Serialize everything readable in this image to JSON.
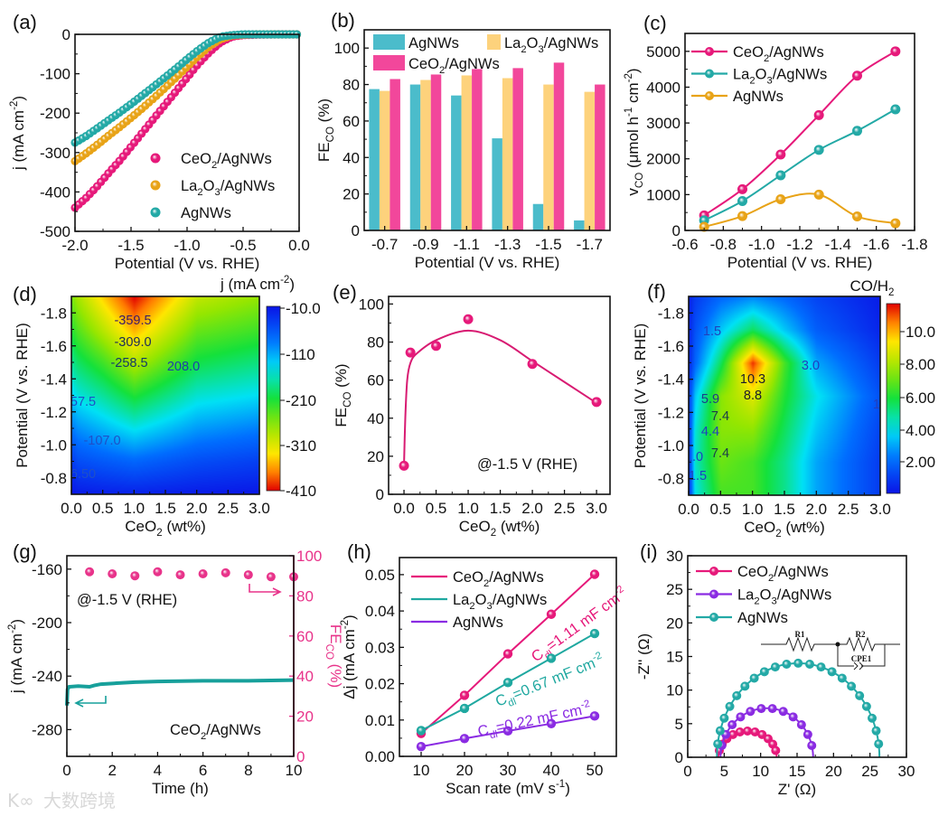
{
  "watermark": {
    "logo": "K∞",
    "text": "大数跨境"
  },
  "chart_data": [
    {
      "id": "a",
      "panel_label": "(a)",
      "type": "scatter",
      "xlabel": "Potential (V vs. RHE)",
      "ylabel": "j (mA cm^{-2})",
      "xlim": [
        -2.0,
        0.0
      ],
      "ylim": [
        -500,
        0
      ],
      "xticks": [
        "-2.0",
        "-1.5",
        "-1.0",
        "-0.5",
        "0.0"
      ],
      "yticks": [
        "0",
        "-100",
        "-200",
        "-300",
        "-400",
        "-500"
      ],
      "legend_position": "bottom-right",
      "series": [
        {
          "name": "CeO_{2}/AgNWs",
          "color": "#e6197a",
          "x": [
            -2.0,
            -1.9,
            -1.8,
            -1.7,
            -1.6,
            -1.5,
            -1.4,
            -1.3,
            -1.2,
            -1.1,
            -1.0,
            -0.9,
            -0.8,
            -0.7,
            -0.6,
            -0.5,
            -0.4,
            -0.2,
            0.0
          ],
          "y": [
            -440,
            -415,
            -385,
            -352,
            -320,
            -285,
            -250,
            -215,
            -180,
            -145,
            -110,
            -75,
            -45,
            -20,
            -6,
            -2,
            -1,
            0,
            0
          ]
        },
        {
          "name": "La_{2}O_{3}/AgNWs",
          "color": "#e8a317",
          "x": [
            -2.0,
            -1.9,
            -1.8,
            -1.7,
            -1.6,
            -1.5,
            -1.4,
            -1.3,
            -1.2,
            -1.1,
            -1.0,
            -0.9,
            -0.8,
            -0.7,
            -0.6,
            -0.5,
            -0.4,
            -0.2,
            0.0
          ],
          "y": [
            -322,
            -302,
            -280,
            -257,
            -235,
            -212,
            -188,
            -163,
            -137,
            -110,
            -82,
            -55,
            -30,
            -12,
            -3,
            -1,
            0,
            0,
            0
          ]
        },
        {
          "name": "AgNWs",
          "color": "#23a9a6",
          "x": [
            -2.0,
            -1.9,
            -1.8,
            -1.7,
            -1.6,
            -1.5,
            -1.4,
            -1.3,
            -1.2,
            -1.1,
            -1.0,
            -0.9,
            -0.8,
            -0.7,
            -0.6,
            -0.5,
            -0.4,
            -0.2,
            0.0
          ],
          "y": [
            -275,
            -258,
            -238,
            -218,
            -198,
            -177,
            -155,
            -133,
            -110,
            -87,
            -63,
            -40,
            -20,
            -6,
            -2,
            0,
            0,
            0,
            0
          ]
        }
      ]
    },
    {
      "id": "b",
      "panel_label": "(b)",
      "type": "bar",
      "xlabel": "Potential (V vs. RHE)",
      "ylabel": "FE_{CO} (%)",
      "categories": [
        "-0.7",
        "-0.9",
        "-1.1",
        "-1.3",
        "-1.5",
        "-1.7"
      ],
      "ylim": [
        0,
        110
      ],
      "yticks": [
        "0",
        "20",
        "40",
        "60",
        "80",
        "100"
      ],
      "legend_position": "top",
      "series": [
        {
          "name": "AgNWs",
          "color": "#4bbccb",
          "values": [
            77.5,
            80,
            74,
            50.5,
            14.5,
            5.5
          ]
        },
        {
          "name": "La_{2}O_{3}/AgNWs",
          "color": "#fdd27c",
          "values": [
            76.5,
            82.5,
            85,
            83.5,
            80,
            76
          ]
        },
        {
          "name": "CeO_{2}/AgNWs",
          "color": "#f2479b",
          "values": [
            83,
            85.5,
            88.5,
            89,
            92,
            80
          ]
        }
      ]
    },
    {
      "id": "c",
      "panel_label": "(c)",
      "type": "line",
      "xlabel": "Potential (V vs. RHE)",
      "ylabel": "v_{CO} (μmol h^{-1} cm^{-2})",
      "xlim": [
        -0.6,
        -1.8
      ],
      "ylim": [
        0,
        5500
      ],
      "xticks": [
        "-0.6",
        "-0.8",
        "-1.0",
        "-1.2",
        "-1.4",
        "-1.6",
        "-1.8"
      ],
      "yticks": [
        "0",
        "1000",
        "2000",
        "3000",
        "4000",
        "5000"
      ],
      "legend_position": "top-left",
      "series": [
        {
          "name": "CeO_{2}/AgNWs",
          "color": "#e6197a",
          "x": [
            -0.7,
            -0.9,
            -1.1,
            -1.3,
            -1.5,
            -1.7
          ],
          "y": [
            420,
            1150,
            2120,
            3220,
            4320,
            5000
          ]
        },
        {
          "name": "La_{2}O_{3}/AgNWs",
          "color": "#23a9a6",
          "x": [
            -0.7,
            -0.9,
            -1.1,
            -1.3,
            -1.5,
            -1.7
          ],
          "y": [
            280,
            820,
            1540,
            2250,
            2780,
            3380
          ]
        },
        {
          "name": "AgNWs",
          "color": "#e8a317",
          "x": [
            -0.7,
            -0.9,
            -1.1,
            -1.3,
            -1.5,
            -1.7
          ],
          "y": [
            100,
            400,
            870,
            1000,
            390,
            200
          ]
        }
      ]
    },
    {
      "id": "d",
      "panel_label": "(d)",
      "type": "heatmap",
      "xlabel": "CeO_{2} (wt%)",
      "ylabel": "Potential (V vs. RHE)",
      "xlim": [
        0,
        3
      ],
      "ylim": [
        -0.7,
        -1.9
      ],
      "xticks": [
        "0.0",
        "0.5",
        "1.0",
        "1.5",
        "2.0",
        "2.5",
        "3.0"
      ],
      "yticks": [
        "-0.8",
        "-1.0",
        "-1.2",
        "-1.4",
        "-1.6",
        "-1.8"
      ],
      "x": [
        0,
        0.1,
        0.5,
        1.0,
        2.0,
        3.0
      ],
      "y": [
        -0.7,
        -0.9,
        -1.1,
        -1.3,
        -1.5,
        -1.7,
        -1.9
      ],
      "z": [
        [
          -10,
          -15,
          -18,
          -20,
          -15,
          -12
        ],
        [
          -40,
          -55,
          -65,
          -75,
          -55,
          -45
        ],
        [
          -87,
          -100,
          -120,
          -145,
          -105,
          -90
        ],
        [
          -133,
          -150,
          -175,
          -215,
          -155,
          -140
        ],
        [
          -177,
          -195,
          -230,
          -285,
          -205,
          -185
        ],
        [
          -218,
          -240,
          -290,
          -352,
          -250,
          -230
        ],
        [
          -258,
          -280,
          -340,
          -410,
          -295,
          -270
        ]
      ],
      "colorbar": {
        "title": "j (mA cm^{-2})",
        "clim": [
          -10,
          -410
        ],
        "ticks": [
          "-10.0",
          "-110",
          "-210",
          "-310",
          "-410"
        ]
      },
      "contour_labels": [
        "-359.5",
        "-309.0",
        "-258.5",
        "208.0",
        "57.5",
        "-107.0",
        "6.50"
      ]
    },
    {
      "id": "e",
      "panel_label": "(e)",
      "type": "scatter",
      "xlabel": "CeO_{2} (wt%)",
      "ylabel": "FE_{CO} (%)",
      "xlim": [
        -0.24,
        3.21
      ],
      "ylim": [
        0,
        104
      ],
      "xticks": [
        "0.0",
        "0.5",
        "1.0",
        "1.5",
        "2.0",
        "2.5",
        "3.0"
      ],
      "yticks": [
        "0",
        "20",
        "40",
        "60",
        "80",
        "100"
      ],
      "annotation": "@-1.5 V (RHE)",
      "series": [
        {
          "name": "CeO2/AgNWs",
          "color": "#e6197a",
          "x": [
            0,
            0.1,
            0.5,
            1.0,
            2.0,
            3.0
          ],
          "y": [
            15,
            74.5,
            78,
            92,
            68.5,
            48.5
          ]
        }
      ],
      "fit": {
        "x": [
          0,
          0.02,
          0.05,
          0.1,
          0.2,
          0.5,
          1.0,
          1.5,
          2.0,
          2.5,
          3.0
        ],
        "y": [
          15,
          40,
          60,
          69,
          74,
          81,
          86,
          81,
          70,
          59,
          48
        ]
      }
    },
    {
      "id": "f",
      "panel_label": "(f)",
      "type": "heatmap",
      "xlabel": "CeO_{2} (wt%)",
      "ylabel": "Potential (V vs. RHE)",
      "xlim": [
        0,
        3
      ],
      "ylim": [
        -0.7,
        -1.9
      ],
      "xticks": [
        "0.0",
        "0.5",
        "1.0",
        "1.5",
        "2.0",
        "2.5",
        "3.0"
      ],
      "yticks": [
        "-0.8",
        "-1.0",
        "-1.2",
        "-1.4",
        "-1.6",
        "-1.8"
      ],
      "x": [
        0,
        0.1,
        0.5,
        1.0,
        1.5,
        2.0,
        3.0
      ],
      "y": [
        -0.7,
        -0.9,
        -1.1,
        -1.3,
        -1.5,
        -1.7,
        -1.9
      ],
      "z": [
        [
          0.8,
          4.0,
          6.5,
          6.5,
          5.0,
          3.0,
          1.0
        ],
        [
          0.8,
          4.4,
          7.0,
          6.5,
          5.0,
          3.0,
          1.0
        ],
        [
          0.9,
          4.2,
          7.4,
          7.5,
          5.5,
          3.5,
          1.2
        ],
        [
          1.0,
          3.5,
          7.4,
          8.8,
          6.0,
          4.0,
          1.5
        ],
        [
          0.5,
          2.0,
          5.5,
          11.2,
          6.5,
          3.0,
          1.0
        ],
        [
          0.5,
          1.5,
          3.5,
          5.5,
          3.5,
          1.8,
          0.5
        ],
        [
          0.4,
          1.0,
          2.0,
          2.5,
          2.0,
          1.2,
          0.3
        ]
      ],
      "colorbar": {
        "title": "CO/H_{2}",
        "clim": [
          0.1,
          11.6
        ],
        "ticks": [
          "2.00",
          "4.00",
          "6.00",
          "8.00",
          "10.0"
        ]
      },
      "contour_labels": [
        "1.5",
        "3.0",
        "10.3",
        "8.8",
        "5.9",
        "7.4",
        "4.4",
        "7.4",
        "1.5",
        "1.0",
        "1.5"
      ]
    },
    {
      "id": "g",
      "panel_label": "(g)",
      "type": "line",
      "xlabel": "Time (h)",
      "ylabel": "j (mA cm^{-2})",
      "y2label": "FE_{CO} (%)",
      "xlim": [
        0,
        10
      ],
      "ylim": [
        -300,
        -150
      ],
      "y2lim": [
        0,
        100
      ],
      "xticks": [
        "0",
        "2",
        "4",
        "6",
        "8",
        "10"
      ],
      "yticks": [
        "-160",
        "-200",
        "-240",
        "-280"
      ],
      "y2ticks": [
        "0",
        "20",
        "40",
        "60",
        "80",
        "100"
      ],
      "annotations": [
        "@-1.5 V (RHE)",
        "CeO_{2}/AgNWs"
      ],
      "series": [
        {
          "name": "j",
          "axis": "left",
          "color": "#17a09b",
          "x": [
            0,
            0.03,
            0.1,
            0.5,
            1.0,
            1.2,
            1.5,
            2,
            3,
            4,
            6,
            8,
            10
          ],
          "y": [
            -262,
            -250,
            -248,
            -247.5,
            -248,
            -247,
            -246,
            -245.5,
            -244.5,
            -244,
            -243.5,
            -243.5,
            -243
          ]
        },
        {
          "name": "FE_CO",
          "axis": "right",
          "color": "#e8338a",
          "x": [
            1,
            2,
            3,
            4,
            5,
            6,
            7,
            8,
            9,
            10
          ],
          "y": [
            92,
            91,
            90,
            92,
            90.5,
            91,
            91.5,
            90.5,
            89.5,
            89.5
          ]
        }
      ]
    },
    {
      "id": "h",
      "panel_label": "(h)",
      "type": "line",
      "xlabel": "Scan rate (mV s^{-1})",
      "ylabel": "Δj (mA cm^{-2})",
      "xlim": [
        5,
        55
      ],
      "ylim": [
        0,
        0.0547
      ],
      "xticks": [
        "10",
        "20",
        "30",
        "40",
        "50"
      ],
      "yticks": [
        "0.00",
        "0.01",
        "0.02",
        "0.03",
        "0.04",
        "0.05"
      ],
      "legend_position": "top-left",
      "series": [
        {
          "name": "CeO_{2}/AgNWs",
          "color": "#e6197a",
          "x": [
            10,
            20,
            30,
            40,
            50
          ],
          "y": [
            0.0063,
            0.0168,
            0.0282,
            0.0391,
            0.0501
          ],
          "annotation": "C_{dl}=1.11 mF cm^{-2}"
        },
        {
          "name": "La_{2}O_{3}/AgNWs",
          "color": "#1fa8a0",
          "x": [
            10,
            20,
            30,
            40,
            50
          ],
          "y": [
            0.0071,
            0.0132,
            0.0203,
            0.027,
            0.0338
          ],
          "annotation": "C_{dl}=0.67 mF cm^{-2}"
        },
        {
          "name": "AgNWs",
          "color": "#8a2be2",
          "x": [
            10,
            20,
            30,
            40,
            50
          ],
          "y": [
            0.0027,
            0.0049,
            0.007,
            0.009,
            0.0111
          ],
          "annotation": "C_{dl}=0.22 mF cm^{-2}"
        }
      ]
    },
    {
      "id": "i",
      "panel_label": "(i)",
      "type": "scatter",
      "xlabel": "Z' (Ω)",
      "ylabel": "-Z'' (Ω)",
      "xlim": [
        0,
        30
      ],
      "ylim": [
        0,
        30
      ],
      "xticks": [
        "0",
        "5",
        "10",
        "15",
        "20",
        "25",
        "30"
      ],
      "yticks": [
        "0",
        "5",
        "10",
        "15",
        "20",
        "25",
        "30"
      ],
      "legend_position": "top-left",
      "inset_circuit": [
        "R1",
        "R2",
        "CPE1"
      ],
      "series": [
        {
          "name": "CeO_{2}/AgNWs",
          "color": "#e6197a",
          "rs": 4.2,
          "rct": 8.0,
          "peak": 3.9,
          "points": 12
        },
        {
          "name": "La_{2}O_{3}/AgNWs",
          "color": "#8a2be2",
          "rs": 4.5,
          "rct": 12.7,
          "peak": 7.3,
          "points": 13
        },
        {
          "name": "AgNWs",
          "color": "#23a9a6",
          "rs": 4.0,
          "rct": 22.3,
          "peak": 14.0,
          "points": 22
        }
      ]
    }
  ]
}
